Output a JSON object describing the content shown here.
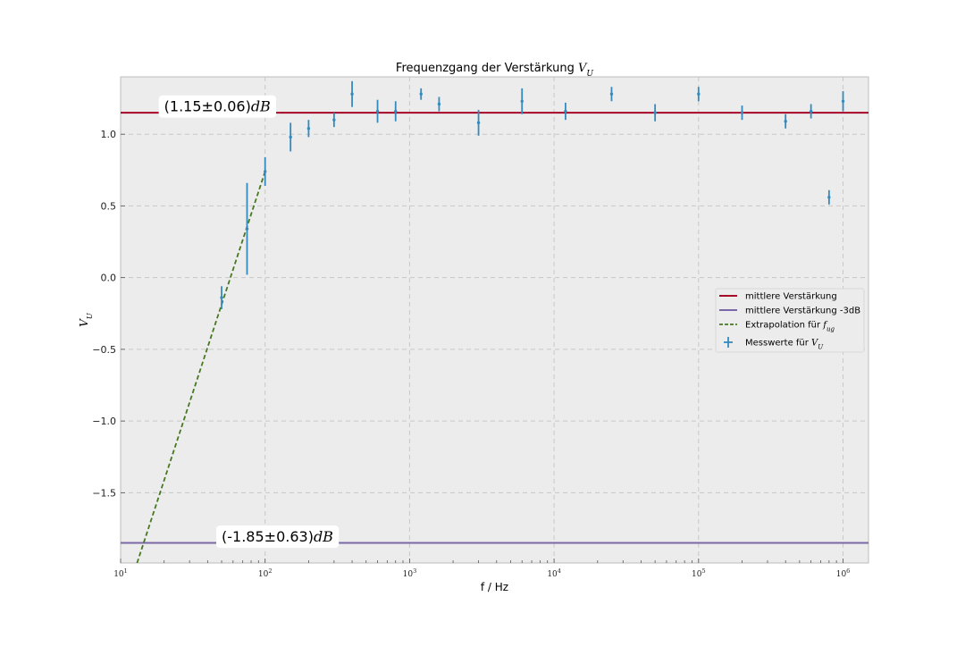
{
  "chart_data": {
    "type": "scatter",
    "title": "Frequenzgang der Verstärkung V_U",
    "xlabel": "f / Hz",
    "ylabel": "V_U",
    "xscale": "log",
    "xlim": [
      10,
      1500000
    ],
    "ylim": [
      -1.99,
      1.4
    ],
    "grid": true,
    "legend_position": "center-right",
    "x_ticks": [
      {
        "value": 10,
        "label": "10^1"
      },
      {
        "value": 100,
        "label": "10^2"
      },
      {
        "value": 1000,
        "label": "10^3"
      },
      {
        "value": 10000,
        "label": "10^4"
      },
      {
        "value": 100000,
        "label": "10^5"
      },
      {
        "value": 1000000,
        "label": "10^6"
      }
    ],
    "y_ticks": [
      {
        "value": 1.0,
        "label": "1.0"
      },
      {
        "value": 0.5,
        "label": "0.5"
      },
      {
        "value": 0.0,
        "label": "0.0"
      },
      {
        "value": -0.5,
        "label": "−0.5"
      },
      {
        "value": -1.0,
        "label": "−1.0"
      },
      {
        "value": -1.5,
        "label": "−1.5"
      }
    ],
    "series": [
      {
        "name": "Messwerte für V_U",
        "kind": "errorbar",
        "color": "#348abd",
        "points": [
          {
            "x": 50,
            "y": -0.14,
            "yerr": 0.08
          },
          {
            "x": 75,
            "y": 0.34,
            "yerr": 0.32
          },
          {
            "x": 100,
            "y": 0.74,
            "yerr": 0.1
          },
          {
            "x": 150,
            "y": 0.98,
            "yerr": 0.1
          },
          {
            "x": 200,
            "y": 1.04,
            "yerr": 0.06
          },
          {
            "x": 300,
            "y": 1.1,
            "yerr": 0.05
          },
          {
            "x": 400,
            "y": 1.28,
            "yerr": 0.09
          },
          {
            "x": 600,
            "y": 1.16,
            "yerr": 0.08
          },
          {
            "x": 800,
            "y": 1.16,
            "yerr": 0.07
          },
          {
            "x": 1200,
            "y": 1.28,
            "yerr": 0.04
          },
          {
            "x": 1600,
            "y": 1.21,
            "yerr": 0.05
          },
          {
            "x": 3000,
            "y": 1.08,
            "yerr": 0.09
          },
          {
            "x": 6000,
            "y": 1.23,
            "yerr": 0.09
          },
          {
            "x": 12000,
            "y": 1.16,
            "yerr": 0.06
          },
          {
            "x": 25000,
            "y": 1.28,
            "yerr": 0.05
          },
          {
            "x": 50000,
            "y": 1.15,
            "yerr": 0.06
          },
          {
            "x": 100000,
            "y": 1.28,
            "yerr": 0.05
          },
          {
            "x": 200000,
            "y": 1.15,
            "yerr": 0.05
          },
          {
            "x": 400000,
            "y": 1.09,
            "yerr": 0.05
          },
          {
            "x": 600000,
            "y": 1.16,
            "yerr": 0.05
          },
          {
            "x": 800000,
            "y": 0.56,
            "yerr": 0.05
          },
          {
            "x": 1000000,
            "y": 1.23,
            "yerr": 0.07
          }
        ]
      },
      {
        "name": "mittlere Verstärkung",
        "kind": "hline",
        "color": "#a60628",
        "y": 1.15
      },
      {
        "name": "mittlere Verstärkung -3dB",
        "kind": "hline",
        "color": "#7a68a6",
        "y": -1.85
      },
      {
        "name": "Extrapolation für f_ug",
        "kind": "dashed-line",
        "color": "#467821",
        "points": [
          {
            "x": 13,
            "y": -1.99
          },
          {
            "x": 100,
            "y": 0.74
          }
        ]
      }
    ],
    "annotations": [
      {
        "text": "(1.15±0.06)",
        "unit": "dB",
        "x": 20,
        "y": 1.19
      },
      {
        "text": "(-1.85±0.63)",
        "unit": "dB",
        "x": 50,
        "y": -1.81
      }
    ]
  }
}
